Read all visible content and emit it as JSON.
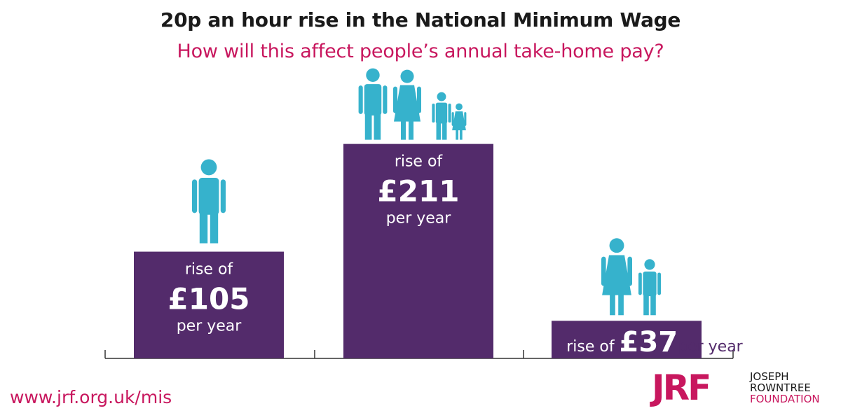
{
  "header": {
    "title": "20p an hour rise in the National Minimum Wage",
    "subtitle": "How will this affect people’s annual take-home pay?"
  },
  "footer": {
    "website": "www.jrf.org.uk/mis",
    "logo_mark": "JRF",
    "logo_lines": [
      "JOSEPH",
      "ROWNTREE",
      "FOUNDATION"
    ]
  },
  "colors": {
    "bar": "#532b6b",
    "figures": "#36b2cc",
    "title": "#1a1a1a",
    "accent": "#c8175e",
    "axis": "#333333"
  },
  "chart_data": {
    "type": "bar",
    "categories": [
      "single adult",
      "couple with two children",
      "lone parent with one child"
    ],
    "values": [
      105,
      211,
      37
    ],
    "labels": [
      {
        "prefix": "rise of",
        "amount": "£105",
        "suffix": "per year",
        "inline": false
      },
      {
        "prefix": "rise of",
        "amount": "£211",
        "suffix": "per year",
        "inline": false
      },
      {
        "prefix": "rise of",
        "amount": "£37",
        "suffix": "per year",
        "inline": true
      }
    ],
    "figures": [
      [
        {
          "role": "man-icon"
        }
      ],
      [
        {
          "role": "man-icon"
        },
        {
          "role": "woman-icon"
        },
        {
          "role": "boy-icon"
        },
        {
          "role": "girl-icon"
        }
      ],
      [
        {
          "role": "woman-icon"
        },
        {
          "role": "boy-icon"
        }
      ]
    ],
    "ylim": [
      0,
      250
    ],
    "grid": false,
    "xlabel": "",
    "ylabel": ""
  }
}
